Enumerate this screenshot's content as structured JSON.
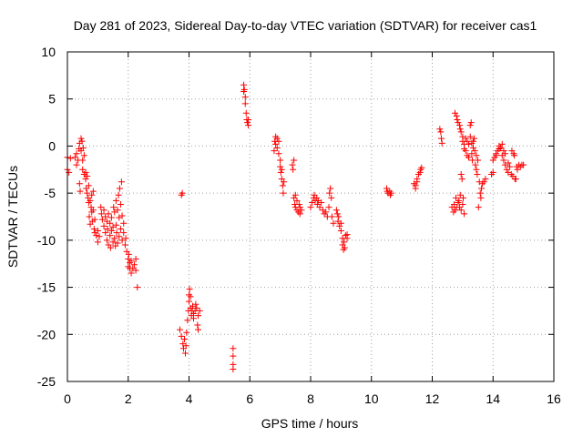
{
  "chart_data": {
    "type": "scatter",
    "title": "Day 281 of 2023, Sidereal Day-to-day VTEC variation (SDTVAR) for receiver cas1",
    "xlabel": "GPS time / hours",
    "ylabel": "SDTVAR / TECUs",
    "xlim": [
      0,
      16
    ],
    "ylim": [
      -25,
      10
    ],
    "x_ticks": [
      0,
      2,
      4,
      6,
      8,
      10,
      12,
      14,
      16
    ],
    "y_ticks": [
      -25,
      -20,
      -15,
      -10,
      -5,
      0,
      5,
      10
    ],
    "grid": true,
    "marker": "+",
    "color": "#ff0000",
    "series": [
      {
        "name": "SDTVAR",
        "points": [
          [
            0.0,
            -1.2
          ],
          [
            0.0,
            -2.5
          ],
          [
            0.05,
            -2.8
          ],
          [
            0.1,
            -1.3
          ],
          [
            0.25,
            -1.2
          ],
          [
            0.3,
            -0.8
          ],
          [
            0.3,
            -2.0
          ],
          [
            0.35,
            -1.5
          ],
          [
            0.38,
            -0.3
          ],
          [
            0.4,
            0.3
          ],
          [
            0.4,
            -4.0
          ],
          [
            0.42,
            -4.8
          ],
          [
            0.45,
            0.8
          ],
          [
            0.45,
            -0.5
          ],
          [
            0.48,
            0.5
          ],
          [
            0.5,
            -1.5
          ],
          [
            0.5,
            -2.5
          ],
          [
            0.52,
            -0.2
          ],
          [
            0.55,
            -3.0
          ],
          [
            0.55,
            -1.0
          ],
          [
            0.6,
            -2.8
          ],
          [
            0.6,
            -3.5
          ],
          [
            0.62,
            -4.5
          ],
          [
            0.65,
            -5.0
          ],
          [
            0.65,
            -3.2
          ],
          [
            0.68,
            -5.5
          ],
          [
            0.7,
            -4.2
          ],
          [
            0.7,
            -6.0
          ],
          [
            0.72,
            -7.5
          ],
          [
            0.75,
            -5.8
          ],
          [
            0.75,
            -8.3
          ],
          [
            0.78,
            -6.5
          ],
          [
            0.8,
            -7.0
          ],
          [
            0.8,
            -5.2
          ],
          [
            0.82,
            -8.0
          ],
          [
            0.85,
            -6.8
          ],
          [
            0.85,
            -4.8
          ],
          [
            0.88,
            -8.8
          ],
          [
            0.9,
            -9.2
          ],
          [
            0.9,
            -7.8
          ],
          [
            0.95,
            -9.5
          ],
          [
            1.0,
            -9.0
          ],
          [
            1.0,
            -10.2
          ],
          [
            1.05,
            -9.6
          ],
          [
            1.1,
            -6.5
          ],
          [
            1.12,
            -7.2
          ],
          [
            1.15,
            -7.8
          ],
          [
            1.2,
            -8.5
          ],
          [
            1.2,
            -6.8
          ],
          [
            1.25,
            -9.2
          ],
          [
            1.25,
            -7.5
          ],
          [
            1.3,
            -10.0
          ],
          [
            1.3,
            -8.0
          ],
          [
            1.32,
            -8.8
          ],
          [
            1.35,
            -10.5
          ],
          [
            1.35,
            -7.2
          ],
          [
            1.4,
            -9.5
          ],
          [
            1.4,
            -8.2
          ],
          [
            1.42,
            -10.8
          ],
          [
            1.45,
            -9.0
          ],
          [
            1.45,
            -7.6
          ],
          [
            1.5,
            -10.2
          ],
          [
            1.5,
            -8.6
          ],
          [
            1.52,
            -6.5
          ],
          [
            1.55,
            -9.8
          ],
          [
            1.55,
            -7.0
          ],
          [
            1.58,
            -10.6
          ],
          [
            1.6,
            -5.8
          ],
          [
            1.6,
            -8.4
          ],
          [
            1.62,
            -9.2
          ],
          [
            1.65,
            -6.8
          ],
          [
            1.65,
            -10.3
          ],
          [
            1.68,
            -5.2
          ],
          [
            1.7,
            -7.6
          ],
          [
            1.7,
            -9.6
          ],
          [
            1.72,
            -4.5
          ],
          [
            1.75,
            -6.2
          ],
          [
            1.75,
            -8.8
          ],
          [
            1.78,
            -3.8
          ],
          [
            1.8,
            -10.0
          ],
          [
            1.8,
            -7.4
          ],
          [
            1.85,
            -9.2
          ],
          [
            1.85,
            -8.2
          ],
          [
            1.9,
            -10.5
          ],
          [
            1.92,
            -9.8
          ],
          [
            1.95,
            -11.2
          ],
          [
            2.0,
            -12.0
          ],
          [
            2.0,
            -12.8
          ],
          [
            2.02,
            -11.5
          ],
          [
            2.05,
            -13.0
          ],
          [
            2.05,
            -12.4
          ],
          [
            2.1,
            -13.5
          ],
          [
            2.1,
            -12.2
          ],
          [
            2.15,
            -13.0
          ],
          [
            2.2,
            -12.6
          ],
          [
            2.25,
            -13.2
          ],
          [
            2.25,
            -12.0
          ],
          [
            2.3,
            -15.0
          ],
          [
            3.75,
            -5.2
          ],
          [
            3.78,
            -5.0
          ],
          [
            3.7,
            -19.5
          ],
          [
            3.75,
            -20.2
          ],
          [
            3.8,
            -21.0
          ],
          [
            3.82,
            -21.5
          ],
          [
            3.85,
            -20.5
          ],
          [
            3.88,
            -22.0
          ],
          [
            3.9,
            -21.2
          ],
          [
            3.92,
            -19.8
          ],
          [
            3.95,
            -18.5
          ],
          [
            3.98,
            -17.5
          ],
          [
            4.0,
            -16.5
          ],
          [
            4.0,
            -15.8
          ],
          [
            4.02,
            -15.2
          ],
          [
            4.05,
            -16.0
          ],
          [
            4.05,
            -17.2
          ],
          [
            4.08,
            -18.0
          ],
          [
            4.1,
            -17.5
          ],
          [
            4.12,
            -17.0
          ],
          [
            4.15,
            -17.8
          ],
          [
            4.15,
            -18.3
          ],
          [
            4.2,
            -17.5
          ],
          [
            4.22,
            -16.8
          ],
          [
            4.25,
            -17.2
          ],
          [
            4.28,
            -19.0
          ],
          [
            4.3,
            -18.0
          ],
          [
            4.3,
            -19.5
          ],
          [
            4.35,
            -17.5
          ],
          [
            5.45,
            -21.5
          ],
          [
            5.45,
            -22.3
          ],
          [
            5.45,
            -23.2
          ],
          [
            5.45,
            -23.7
          ],
          [
            5.8,
            6.5
          ],
          [
            5.8,
            5.8
          ],
          [
            5.82,
            6.0
          ],
          [
            5.85,
            5.2
          ],
          [
            5.85,
            4.5
          ],
          [
            5.88,
            3.5
          ],
          [
            5.9,
            2.8
          ],
          [
            5.92,
            2.5
          ],
          [
            5.95,
            2.2
          ],
          [
            5.95,
            2.8
          ],
          [
            6.8,
            -0.5
          ],
          [
            6.82,
            0.5
          ],
          [
            6.85,
            1.0
          ],
          [
            6.85,
            0.2
          ],
          [
            6.9,
            0.8
          ],
          [
            6.9,
            -0.2
          ],
          [
            6.95,
            0.5
          ],
          [
            6.95,
            -0.8
          ],
          [
            7.0,
            -1.5
          ],
          [
            7.0,
            -2.2
          ],
          [
            7.02,
            -2.8
          ],
          [
            7.05,
            -3.5
          ],
          [
            7.05,
            -2.5
          ],
          [
            7.08,
            -4.2
          ],
          [
            7.1,
            -5.0
          ],
          [
            7.12,
            -3.8
          ],
          [
            7.4,
            -2.0
          ],
          [
            7.42,
            -2.5
          ],
          [
            7.45,
            -1.5
          ],
          [
            7.45,
            -5.5
          ],
          [
            7.48,
            -6.2
          ],
          [
            7.5,
            -5.2
          ],
          [
            7.5,
            -6.5
          ],
          [
            7.55,
            -6.8
          ],
          [
            7.55,
            -5.8
          ],
          [
            7.6,
            -7.0
          ],
          [
            7.62,
            -6.2
          ],
          [
            7.65,
            -7.2
          ],
          [
            7.65,
            -6.5
          ],
          [
            7.7,
            -6.8
          ],
          [
            8.0,
            -6.5
          ],
          [
            8.05,
            -6.0
          ],
          [
            8.1,
            -5.5
          ],
          [
            8.12,
            -5.2
          ],
          [
            8.15,
            -5.8
          ],
          [
            8.2,
            -5.5
          ],
          [
            8.22,
            -6.2
          ],
          [
            8.25,
            -5.8
          ],
          [
            8.3,
            -6.5
          ],
          [
            8.35,
            -6.0
          ],
          [
            8.4,
            -6.8
          ],
          [
            8.45,
            -7.2
          ],
          [
            8.5,
            -7.0
          ],
          [
            8.55,
            -7.5
          ],
          [
            8.6,
            -6.5
          ],
          [
            8.62,
            -5.0
          ],
          [
            8.65,
            -4.5
          ],
          [
            8.68,
            -5.5
          ],
          [
            8.7,
            -7.5
          ],
          [
            8.75,
            -8.2
          ],
          [
            8.85,
            -6.8
          ],
          [
            8.88,
            -7.2
          ],
          [
            8.9,
            -8.0
          ],
          [
            8.92,
            -7.5
          ],
          [
            8.95,
            -8.5
          ],
          [
            9.0,
            -9.0
          ],
          [
            9.0,
            -8.2
          ],
          [
            9.05,
            -9.8
          ],
          [
            9.05,
            -10.5
          ],
          [
            9.08,
            -11.0
          ],
          [
            9.1,
            -10.2
          ],
          [
            9.12,
            -10.8
          ],
          [
            9.15,
            -9.5
          ],
          [
            9.2,
            -9.8
          ],
          [
            9.2,
            -9.4
          ],
          [
            10.5,
            -4.5
          ],
          [
            10.52,
            -4.8
          ],
          [
            10.55,
            -5.0
          ],
          [
            10.6,
            -4.8
          ],
          [
            10.62,
            -5.2
          ],
          [
            10.65,
            -5.0
          ],
          [
            11.4,
            -4.0
          ],
          [
            11.45,
            -4.5
          ],
          [
            11.45,
            -4.2
          ],
          [
            11.5,
            -3.5
          ],
          [
            11.5,
            -3.8
          ],
          [
            11.55,
            -3.0
          ],
          [
            11.6,
            -2.8
          ],
          [
            11.62,
            -2.5
          ],
          [
            11.65,
            -2.3
          ],
          [
            12.25,
            1.8
          ],
          [
            12.28,
            1.5
          ],
          [
            12.3,
            0.8
          ],
          [
            12.32,
            0.3
          ],
          [
            12.65,
            -6.5
          ],
          [
            12.7,
            -7.0
          ],
          [
            12.72,
            -6.2
          ],
          [
            12.75,
            -6.8
          ],
          [
            12.78,
            -5.5
          ],
          [
            12.8,
            -6.5
          ],
          [
            12.85,
            -6.0
          ],
          [
            12.88,
            -5.8
          ],
          [
            12.9,
            -6.5
          ],
          [
            12.92,
            -5.2
          ],
          [
            12.95,
            -6.8
          ],
          [
            12.95,
            -3.0
          ],
          [
            12.98,
            -3.5
          ],
          [
            13.0,
            -6.2
          ],
          [
            13.02,
            -5.5
          ],
          [
            13.05,
            -7.2
          ],
          [
            12.75,
            3.5
          ],
          [
            12.8,
            3.2
          ],
          [
            12.82,
            2.8
          ],
          [
            12.85,
            2.5
          ],
          [
            12.9,
            2.2
          ],
          [
            12.92,
            1.8
          ],
          [
            12.95,
            1.5
          ],
          [
            13.0,
            1.0
          ],
          [
            13.0,
            0.5
          ],
          [
            13.05,
            0.2
          ],
          [
            13.05,
            -0.3
          ],
          [
            13.1,
            0.8
          ],
          [
            13.1,
            -0.5
          ],
          [
            13.15,
            0.5
          ],
          [
            13.15,
            -1.0
          ],
          [
            13.2,
            0.2
          ],
          [
            13.2,
            -1.2
          ],
          [
            13.25,
            1.0
          ],
          [
            13.25,
            2.2
          ],
          [
            13.28,
            2.5
          ],
          [
            13.3,
            -0.8
          ],
          [
            13.3,
            0.3
          ],
          [
            13.32,
            -1.5
          ],
          [
            13.35,
            0.5
          ],
          [
            13.35,
            -0.2
          ],
          [
            13.38,
            0.8
          ],
          [
            13.4,
            -0.5
          ],
          [
            13.42,
            -2.0
          ],
          [
            13.45,
            -1.0
          ],
          [
            13.45,
            -2.5
          ],
          [
            13.48,
            -3.0
          ],
          [
            13.5,
            -1.5
          ],
          [
            13.52,
            -6.5
          ],
          [
            13.55,
            -3.8
          ],
          [
            13.58,
            -5.0
          ],
          [
            13.6,
            -5.5
          ],
          [
            13.62,
            -4.5
          ],
          [
            13.65,
            -4.0
          ],
          [
            13.7,
            -3.8
          ],
          [
            13.75,
            -3.5
          ],
          [
            13.95,
            -3.0
          ],
          [
            14.0,
            -2.8
          ],
          [
            14.0,
            -1.5
          ],
          [
            14.05,
            -1.2
          ],
          [
            14.1,
            -1.0
          ],
          [
            14.1,
            -0.8
          ],
          [
            14.15,
            -0.5
          ],
          [
            14.2,
            0.0
          ],
          [
            14.2,
            -0.3
          ],
          [
            14.25,
            -0.2
          ],
          [
            14.3,
            -1.0
          ],
          [
            14.3,
            0.2
          ],
          [
            14.35,
            -1.5
          ],
          [
            14.35,
            -0.5
          ],
          [
            14.4,
            -2.0
          ],
          [
            14.4,
            -0.8
          ],
          [
            14.45,
            -2.5
          ],
          [
            14.5,
            -1.8
          ],
          [
            14.5,
            -2.8
          ],
          [
            14.55,
            -2.2
          ],
          [
            14.6,
            -3.0
          ],
          [
            14.62,
            -0.5
          ],
          [
            14.65,
            -3.2
          ],
          [
            14.68,
            -0.8
          ],
          [
            14.7,
            -1.0
          ],
          [
            14.72,
            -3.5
          ],
          [
            14.75,
            -3.5
          ],
          [
            14.78,
            -2.2
          ],
          [
            14.8,
            -2.5
          ],
          [
            14.85,
            -2.0
          ],
          [
            14.9,
            -2.2
          ],
          [
            14.95,
            -2.0
          ],
          [
            15.0,
            -2.0
          ]
        ]
      }
    ]
  }
}
